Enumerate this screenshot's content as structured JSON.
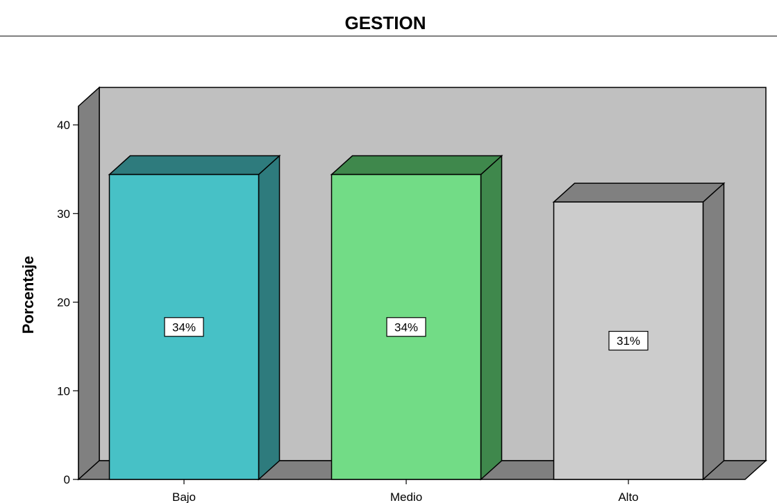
{
  "chart_data": {
    "type": "bar",
    "title": "GESTION",
    "xlabel": "",
    "ylabel": "Porcentaje",
    "categories": [
      "Bajo",
      "Medio",
      "Alto"
    ],
    "values": [
      34.4,
      34.4,
      31.3
    ],
    "data_labels": [
      "34%",
      "34%",
      "31%"
    ],
    "ylim": [
      0,
      40
    ],
    "yticks": [
      0,
      10,
      20,
      30,
      40
    ],
    "ytick_labels": [
      "0",
      "10",
      "20",
      "30",
      "40"
    ],
    "colors": {
      "bar_front": [
        "#47c1c6",
        "#72dc86",
        "#cccccc"
      ],
      "bar_top": [
        "#2e7b7d",
        "#3f884c",
        "#808080"
      ],
      "bar_side": [
        "#2e7b7d",
        "#3f884c",
        "#808080"
      ],
      "back_wall": "#c0c0c0",
      "side_wall": "#808080",
      "floor": "#808080"
    },
    "style": "3d",
    "grid": false,
    "legend": "none"
  }
}
